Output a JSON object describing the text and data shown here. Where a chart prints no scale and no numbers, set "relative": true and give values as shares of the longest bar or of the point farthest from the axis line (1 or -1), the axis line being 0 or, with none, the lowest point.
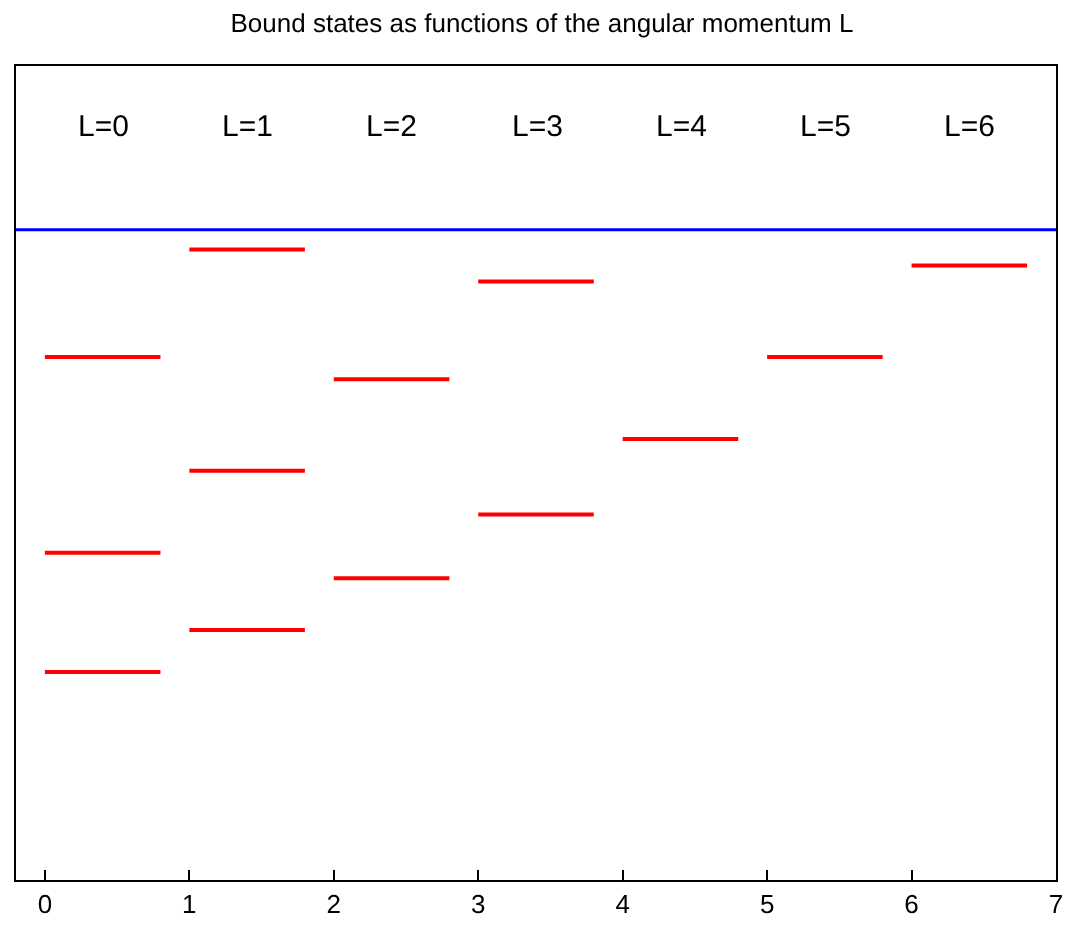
{
  "chart_data": {
    "type": "line",
    "title": "Bound states as functions of the angular momentum L",
    "relative": true,
    "xlim": [
      -0.2,
      7
    ],
    "xticks": [
      0,
      1,
      2,
      3,
      4,
      5,
      6,
      7
    ],
    "marker": "none",
    "line_style": "solid",
    "annotations": [
      "L=0",
      "L=1",
      "L=2",
      "L=3",
      "L=4",
      "L=5",
      "L=6"
    ],
    "ref_lines": [
      {
        "axis": "y",
        "value": 0,
        "color": "#0000ff"
      }
    ],
    "x": [
      0,
      0.8,
      null,
      1,
      1.8,
      null,
      2,
      2.8,
      null,
      3,
      3.8,
      null,
      4,
      4.8,
      null,
      5,
      5.8,
      null,
      6,
      6.8
    ],
    "series": [
      {
        "color": "#ff0000",
        "values": [
          -1,
          -1,
          null,
          -0.905,
          -0.905,
          null,
          -0.788,
          -0.788,
          null,
          -0.644,
          -0.644,
          null,
          -0.473,
          -0.473,
          null,
          -0.288,
          -0.288,
          null,
          -0.081,
          -0.081
        ]
      },
      {
        "color": "#ff0000",
        "values": [
          -0.73,
          -0.73,
          null,
          -0.545,
          -0.545,
          null,
          -0.338,
          -0.338,
          null,
          -0.117,
          -0.117,
          null,
          null,
          null,
          null,
          null,
          null,
          null,
          null,
          null
        ]
      },
      {
        "color": "#ff0000",
        "values": [
          -0.288,
          -0.288,
          null,
          -0.045,
          -0.045,
          null,
          null,
          null,
          null,
          null,
          null,
          null,
          null,
          null,
          null,
          null,
          null,
          null,
          null,
          null
        ]
      }
    ]
  }
}
